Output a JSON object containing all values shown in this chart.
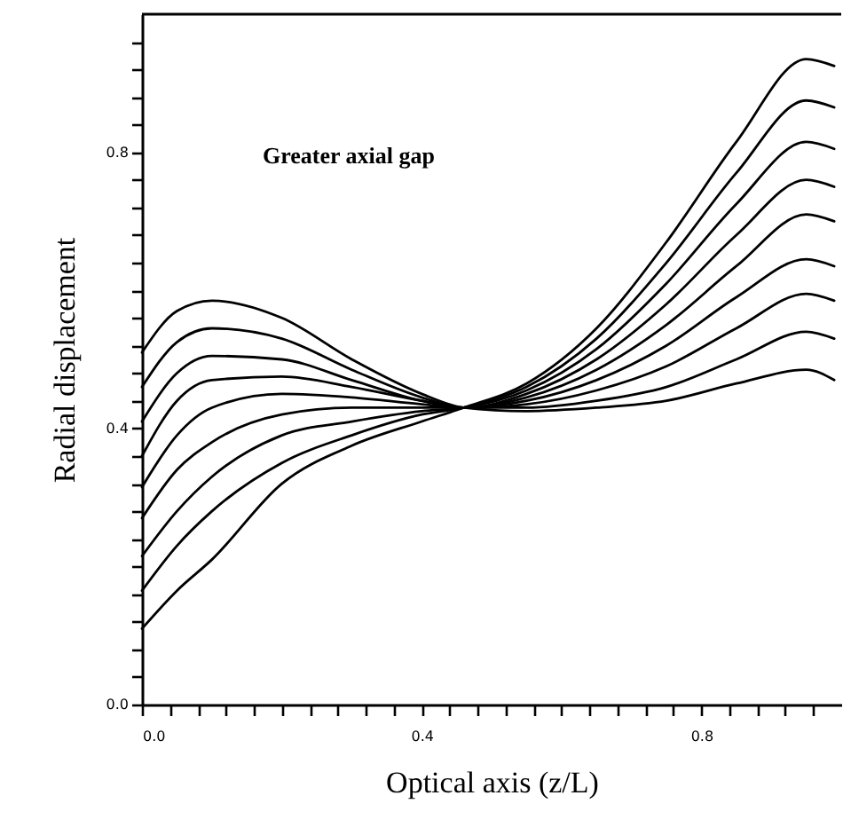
{
  "chart_data": {
    "type": "line",
    "xlabel": "Optical axis (z/L)",
    "ylabel": "Radial displacement",
    "annotations": [
      "Greater axial gap"
    ],
    "x": [
      0,
      0.05,
      0.1,
      0.2,
      0.3,
      0.4,
      0.46,
      0.55,
      0.65,
      0.75,
      0.85,
      0.95,
      0.99
    ],
    "series": [
      {
        "color": "#000000",
        "values": [
          0.51,
          0.57,
          0.585,
          0.56,
          0.5,
          0.45,
          0.43,
          0.425,
          0.43,
          0.44,
          0.465,
          0.485,
          0.47
        ]
      },
      {
        "color": "#000000",
        "values": [
          0.46,
          0.525,
          0.545,
          0.53,
          0.485,
          0.445,
          0.43,
          0.43,
          0.44,
          0.46,
          0.5,
          0.54,
          0.53
        ]
      },
      {
        "color": "#000000",
        "values": [
          0.41,
          0.48,
          0.505,
          0.5,
          0.47,
          0.44,
          0.43,
          0.435,
          0.455,
          0.49,
          0.545,
          0.595,
          0.585
        ]
      },
      {
        "color": "#000000",
        "values": [
          0.36,
          0.44,
          0.47,
          0.475,
          0.46,
          0.44,
          0.43,
          0.44,
          0.47,
          0.52,
          0.59,
          0.645,
          0.635
        ]
      },
      {
        "color": "#000000",
        "values": [
          0.315,
          0.39,
          0.43,
          0.45,
          0.445,
          0.435,
          0.43,
          0.445,
          0.485,
          0.55,
          0.635,
          0.71,
          0.7
        ]
      },
      {
        "color": "#000000",
        "values": [
          0.27,
          0.34,
          0.38,
          0.42,
          0.43,
          0.43,
          0.43,
          0.45,
          0.5,
          0.58,
          0.68,
          0.76,
          0.75
        ]
      },
      {
        "color": "#000000",
        "values": [
          0.215,
          0.28,
          0.33,
          0.39,
          0.41,
          0.425,
          0.43,
          0.455,
          0.515,
          0.61,
          0.725,
          0.815,
          0.805
        ]
      },
      {
        "color": "#000000",
        "values": [
          0.165,
          0.23,
          0.28,
          0.35,
          0.39,
          0.42,
          0.43,
          0.46,
          0.53,
          0.64,
          0.77,
          0.875,
          0.865
        ]
      },
      {
        "color": "#000000",
        "values": [
          0.11,
          0.165,
          0.21,
          0.32,
          0.375,
          0.41,
          0.43,
          0.465,
          0.545,
          0.67,
          0.815,
          0.935,
          0.925
        ]
      }
    ],
    "xlim": [
      0,
      1.0
    ],
    "ylim": [
      0,
      1.0
    ],
    "xticks": [
      {
        "value": 0,
        "label": "0.0"
      },
      {
        "value": 0.04,
        "label": null
      },
      {
        "value": 0.08,
        "label": null
      },
      {
        "value": 0.12,
        "label": null
      },
      {
        "value": 0.16,
        "label": null
      },
      {
        "value": 0.2,
        "label": null
      },
      {
        "value": 0.24,
        "label": null
      },
      {
        "value": 0.28,
        "label": null
      },
      {
        "value": 0.32,
        "label": null
      },
      {
        "value": 0.36,
        "label": null
      },
      0.4,
      {
        "value": 0.44,
        "label": null
      },
      {
        "value": 0.48,
        "label": null
      },
      {
        "value": 0.52,
        "label": null
      },
      {
        "value": 0.56,
        "label": null
      },
      {
        "value": 0.6,
        "label": null
      },
      {
        "value": 0.64,
        "label": null
      },
      {
        "value": 0.68,
        "label": null
      },
      {
        "value": 0.72,
        "label": null
      },
      {
        "value": 0.76,
        "label": null
      },
      0.8,
      {
        "value": 0.84,
        "label": null
      },
      {
        "value": 0.88,
        "label": null
      },
      {
        "value": 0.92,
        "label": null
      },
      {
        "value": 0.96,
        "label": null
      }
    ],
    "yticks": [
      {
        "value": 0,
        "label": "0.0"
      },
      {
        "value": 0.04,
        "label": null
      },
      {
        "value": 0.08,
        "label": null
      },
      {
        "value": 0.12,
        "label": null
      },
      {
        "value": 0.16,
        "label": null
      },
      {
        "value": 0.2,
        "label": null
      },
      {
        "value": 0.24,
        "label": null
      },
      {
        "value": 0.28,
        "label": null
      },
      {
        "value": 0.32,
        "label": null
      },
      {
        "value": 0.36,
        "label": null
      },
      0.4,
      {
        "value": 0.44,
        "label": null
      },
      {
        "value": 0.48,
        "label": null
      },
      {
        "value": 0.52,
        "label": null
      },
      {
        "value": 0.56,
        "label": null
      },
      {
        "value": 0.6,
        "label": null
      },
      {
        "value": 0.64,
        "label": null
      },
      {
        "value": 0.68,
        "label": null
      },
      {
        "value": 0.72,
        "label": null
      },
      {
        "value": 0.76,
        "label": null
      },
      0.8,
      {
        "value": 0.84,
        "label": null
      },
      {
        "value": 0.88,
        "label": null
      },
      {
        "value": 0.92,
        "label": null
      },
      {
        "value": 0.96,
        "label": null
      }
    ]
  }
}
